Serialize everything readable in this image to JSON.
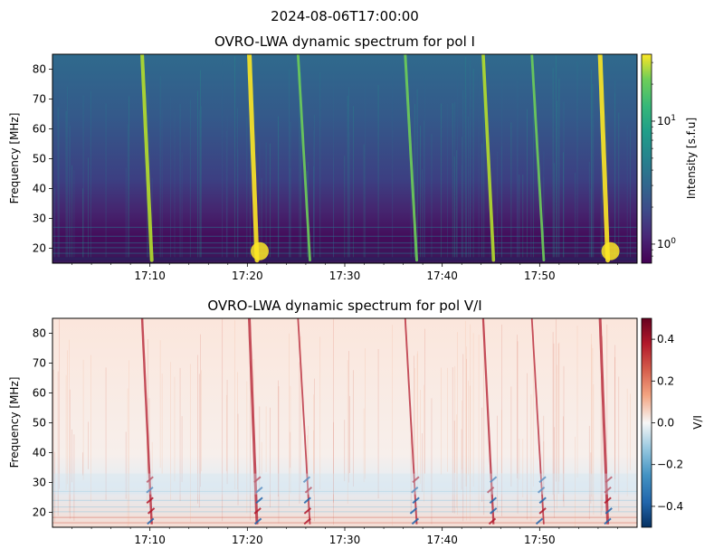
{
  "suptitle": "2024-08-06T17:00:00",
  "chart_data": [
    {
      "type": "heatmap",
      "title": "OVRO-LWA dynamic spectrum for pol I",
      "ylabel": "Frequency [MHz]",
      "xlim": [
        "17:00:00",
        "18:00:00"
      ],
      "ylim": [
        15,
        85
      ],
      "x_ticks": [
        "17:10",
        "17:20",
        "17:30",
        "17:40",
        "17:50"
      ],
      "y_ticks": [
        20,
        30,
        40,
        50,
        60,
        70,
        80
      ],
      "colormap": "viridis",
      "color_scale": "log",
      "colorbar": {
        "label": "Intensity [s.f.u]",
        "range": [
          0.7,
          35
        ],
        "tick_labels": [
          "10^0",
          "10^1"
        ]
      },
      "bursts": [
        {
          "time": "17:10",
          "strength": 0.75
        },
        {
          "time": "17:21",
          "strength": 1.0
        },
        {
          "time": "17:26",
          "strength": 0.45
        },
        {
          "time": "17:37",
          "strength": 0.5
        },
        {
          "time": "17:45",
          "strength": 0.65
        },
        {
          "time": "17:50",
          "strength": 0.45
        },
        {
          "time": "17:57",
          "strength": 1.0
        }
      ]
    },
    {
      "type": "heatmap",
      "title": "OVRO-LWA dynamic spectrum for pol V/I",
      "ylabel": "Frequency [MHz]",
      "xlim": [
        "17:00:00",
        "18:00:00"
      ],
      "ylim": [
        15,
        85
      ],
      "x_ticks": [
        "17:10",
        "17:20",
        "17:30",
        "17:40",
        "17:50"
      ],
      "y_ticks": [
        20,
        30,
        40,
        50,
        60,
        70,
        80
      ],
      "colormap": "RdBu_r",
      "color_scale": "linear",
      "colorbar": {
        "label": "V/I",
        "range": [
          -0.5,
          0.5
        ],
        "ticks": [
          -0.4,
          -0.2,
          0.0,
          0.2,
          0.4
        ],
        "tick_labels": [
          "−0.4",
          "−0.2",
          "0.0",
          "0.2",
          "0.4"
        ]
      }
    }
  ]
}
